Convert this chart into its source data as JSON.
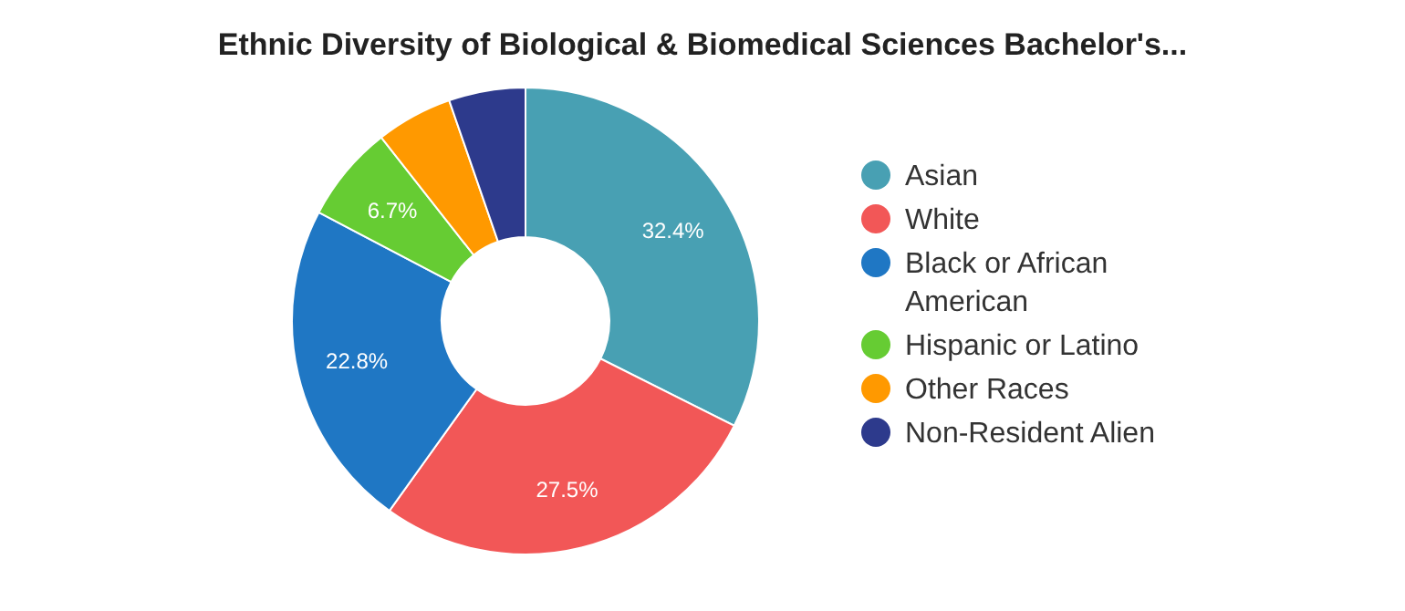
{
  "chart_data": {
    "type": "donut",
    "title": "Ethnic Diversity of Biological & Biomedical Sciences Bachelor's...",
    "categories": [
      "Asian",
      "White",
      "Black or African American",
      "Hispanic or Latino",
      "Other Races",
      "Non-Resident Alien"
    ],
    "values": [
      32.4,
      27.5,
      22.8,
      6.7,
      5.3,
      5.3
    ],
    "value_labels": [
      "32.4%",
      "27.5%",
      "22.8%",
      "6.7%",
      null,
      null
    ],
    "colors": [
      "#48a0b3",
      "#f25757",
      "#1f77c4",
      "#66cc33",
      "#ff9900",
      "#2d3a8c"
    ],
    "legend": "right"
  }
}
